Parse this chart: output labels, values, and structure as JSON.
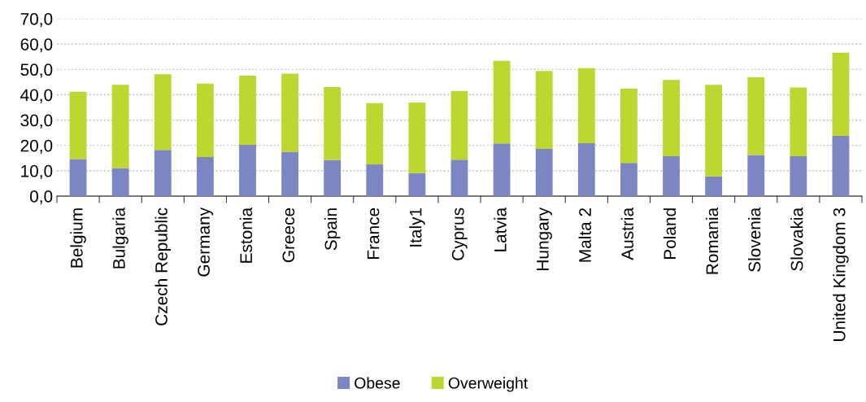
{
  "chart_data": {
    "type": "bar",
    "stacked": true,
    "categories": [
      "Belgium",
      "Bulgaria",
      "Czech Republic",
      "Germany",
      "Estonia",
      "Greece",
      "Spain",
      "France",
      "Italy1",
      "Cyprus",
      "Latvia",
      "Hungary",
      "Malta 2",
      "Austria",
      "Poland",
      "Romania",
      "Slovenia",
      "Slovakia",
      "United Kingdom 3"
    ],
    "series": [
      {
        "name": "Obese",
        "color": "#7b86c2",
        "values": [
          14.6,
          11.0,
          18.2,
          15.4,
          20.2,
          17.5,
          14.3,
          12.5,
          9.1,
          14.4,
          20.8,
          18.6,
          20.9,
          13.1,
          15.7,
          7.8,
          16.2,
          15.7,
          23.8
        ]
      },
      {
        "name": "Overweight",
        "color": "#bed630",
        "values": [
          26.6,
          32.9,
          29.9,
          29.0,
          27.3,
          30.8,
          28.7,
          24.2,
          27.8,
          27.1,
          32.6,
          30.8,
          29.6,
          29.3,
          30.1,
          36.1,
          30.7,
          27.2,
          32.8
        ]
      }
    ],
    "ylim": [
      0,
      70
    ],
    "yticks": [
      {
        "value": 0,
        "label": "0,0"
      },
      {
        "value": 10,
        "label": "10,0"
      },
      {
        "value": 20,
        "label": "20,0"
      },
      {
        "value": 30,
        "label": "30,0"
      },
      {
        "value": 40,
        "label": "40,0"
      },
      {
        "value": 50,
        "label": "50,0"
      },
      {
        "value": 60,
        "label": "60,0"
      },
      {
        "value": 70,
        "label": "70,0"
      }
    ],
    "grid": "y",
    "legend": "bottom"
  }
}
